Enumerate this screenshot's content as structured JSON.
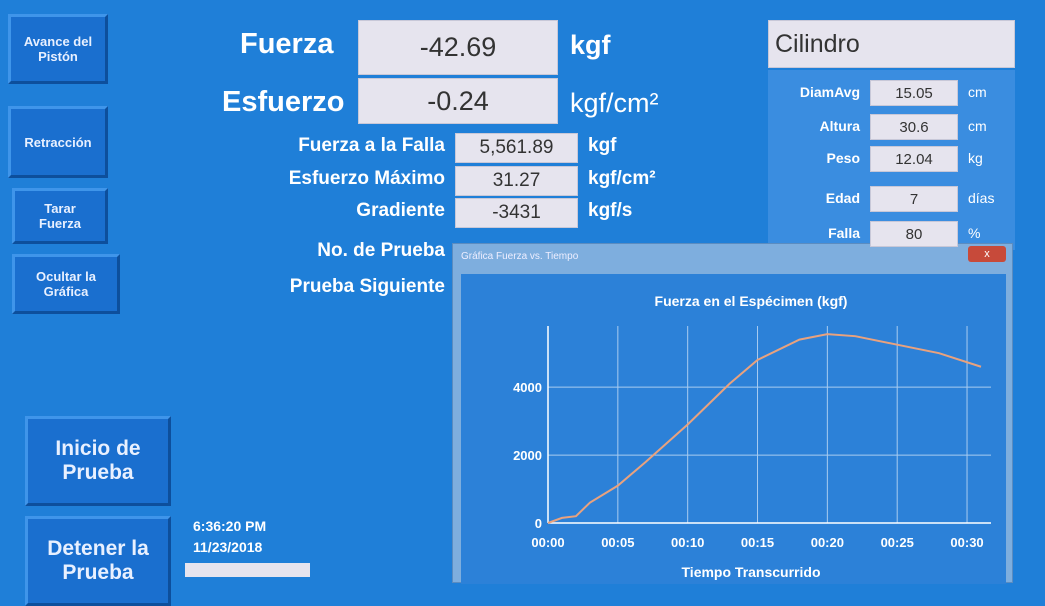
{
  "buttons": [
    "Avance del Pistón",
    "Retracción",
    "Tarar Fuerza",
    "Ocultar la Gráfica"
  ],
  "big_buttons": [
    "Inicio de Prueba",
    "Detener la Prueba"
  ],
  "clock": {
    "time": "6:36:20 PM",
    "date": "11/23/2018"
  },
  "main": [
    {
      "label": "Fuerza",
      "value": "-42.69",
      "unit": "kgf"
    },
    {
      "label": "Esfuerzo",
      "value": "-0.24",
      "unit": "kgf/cm²"
    }
  ],
  "results": [
    {
      "label": "Fuerza a la Falla",
      "value": "5,561.89",
      "unit": "kgf"
    },
    {
      "label": "Esfuerzo Máximo",
      "value": "31.27",
      "unit": "kgf/cm²"
    },
    {
      "label": "Gradiente",
      "value": "-3431",
      "unit": "kgf/s"
    },
    {
      "label": "No. de Prueba"
    },
    {
      "label": "Prueba Siguiente"
    }
  ],
  "specimen": {
    "type": "Cilindro",
    "fields": [
      {
        "label": "DiamAvg",
        "value": "15.05",
        "unit": "cm"
      },
      {
        "label": "Altura",
        "value": "30.6",
        "unit": "cm"
      },
      {
        "label": "Peso",
        "value": "12.04",
        "unit": "kg"
      },
      {
        "label": "Edad",
        "value": "7",
        "unit": "días"
      },
      {
        "label": "Falla",
        "value": "80",
        "unit": "%"
      }
    ]
  },
  "window_title": "Gráfica Fuerza vs. Tiempo",
  "chart_data": {
    "type": "line",
    "title": "Fuerza en el Espécimen (kgf)",
    "x_label": "Tiempo Transcurrido",
    "x": [
      0,
      1,
      2,
      3,
      5,
      7,
      10,
      13,
      15,
      18,
      20,
      22,
      25,
      28,
      31
    ],
    "values": [
      0,
      150,
      200,
      600,
      1100,
      1800,
      2900,
      4100,
      4800,
      5400,
      5560,
      5500,
      5250,
      5000,
      4600
    ],
    "color": "#e9a27e",
    "xlim": [
      0,
      31
    ],
    "ylim": [
      0,
      5800
    ],
    "xticks": [
      {
        "value": 0,
        "label": "00:00"
      },
      {
        "value": 5,
        "label": "00:05"
      },
      {
        "value": 10,
        "label": "00:10"
      },
      {
        "value": 15,
        "label": "00:15"
      },
      {
        "value": 20,
        "label": "00:20"
      },
      {
        "value": 25,
        "label": "00:25"
      },
      {
        "value": 30,
        "label": "00:30"
      }
    ],
    "yticks": [
      0,
      2000,
      4000
    ],
    "grid": true
  }
}
